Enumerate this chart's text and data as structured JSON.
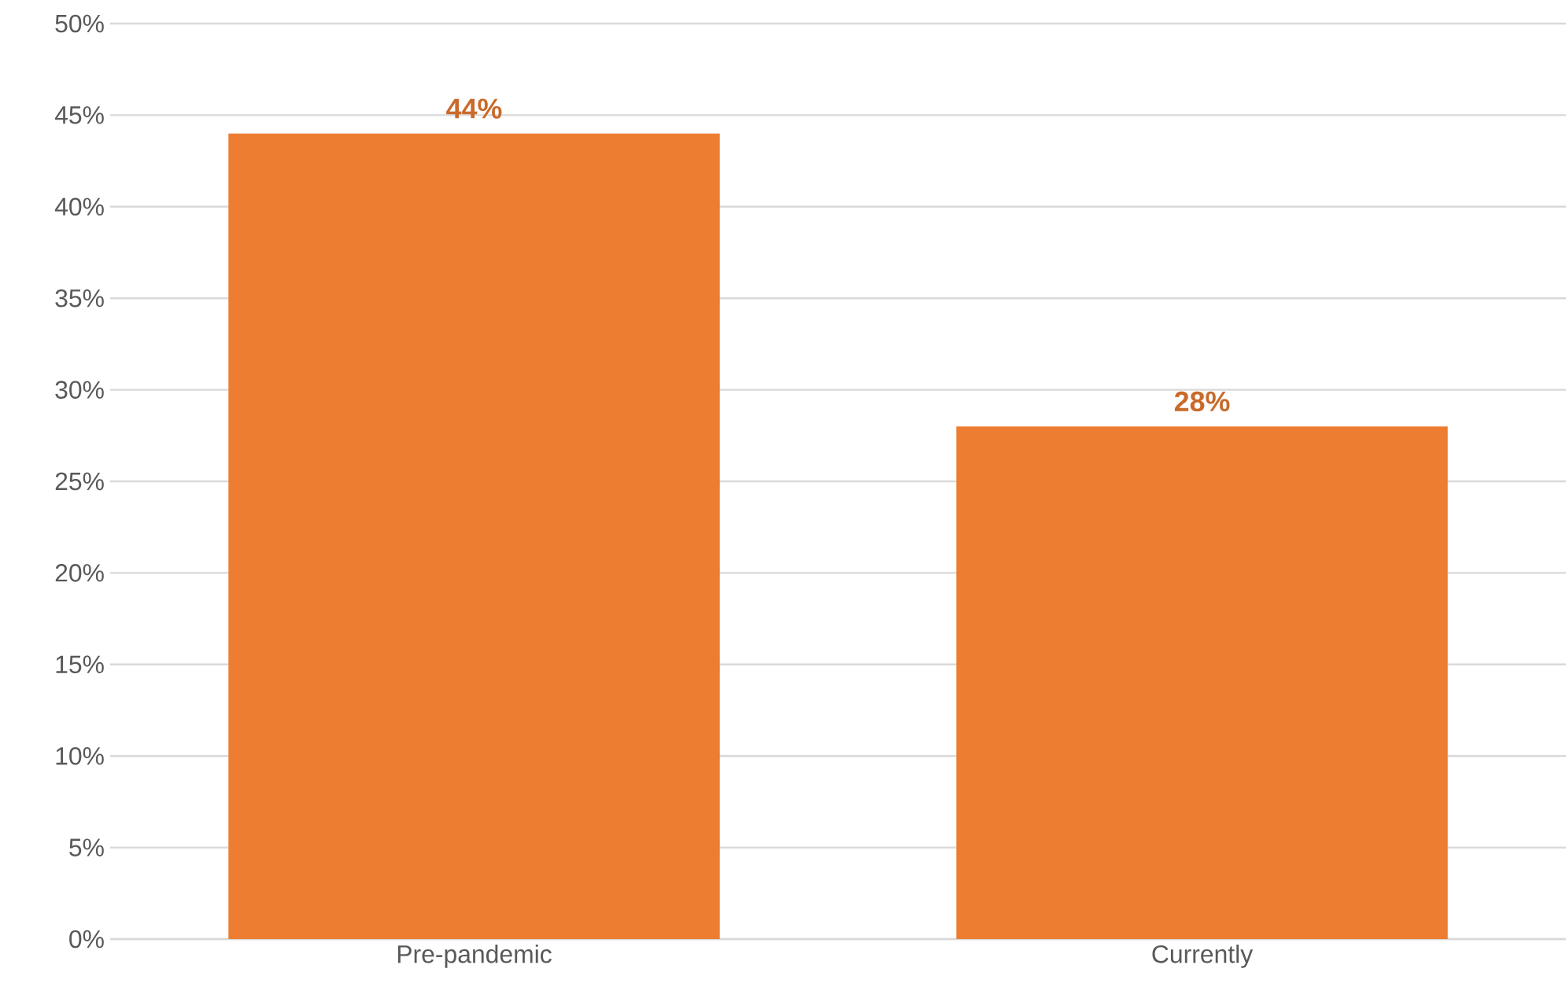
{
  "chart_data": {
    "type": "bar",
    "categories": [
      "Pre-pandemic",
      "Currently"
    ],
    "values": [
      44,
      28
    ],
    "color": "#ed7d31",
    "value_labels": [
      "44%",
      "28%"
    ],
    "ylim": [
      0,
      50
    ],
    "yticks": [
      {
        "value": 0,
        "label": "0%"
      },
      {
        "value": 5,
        "label": "5%"
      },
      {
        "value": 10,
        "label": "10%"
      },
      {
        "value": 15,
        "label": "15%"
      },
      {
        "value": 20,
        "label": "20%"
      },
      {
        "value": 25,
        "label": "25%"
      },
      {
        "value": 30,
        "label": "30%"
      },
      {
        "value": 35,
        "label": "35%"
      },
      {
        "value": 40,
        "label": "40%"
      },
      {
        "value": 45,
        "label": "45%"
      },
      {
        "value": 50,
        "label": "50%"
      }
    ],
    "grid": "y"
  }
}
